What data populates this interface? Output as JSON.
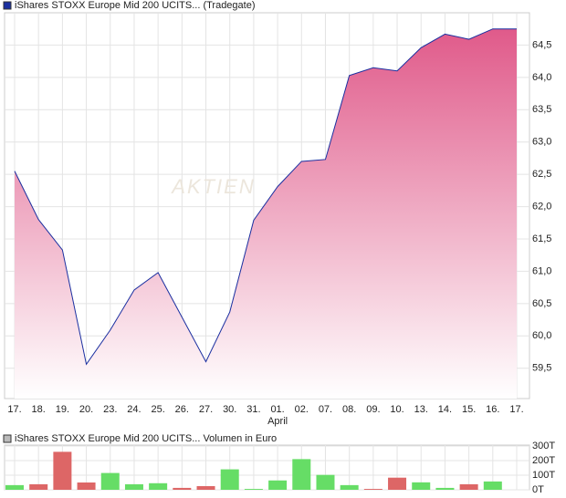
{
  "chart_data": [
    {
      "type": "area",
      "title": "iShares STOXX Europe Mid 200 UCITS... (Tradegate)",
      "watermark": "AKTIEN",
      "categories": [
        "17.",
        "18.",
        "19.",
        "20.",
        "23.",
        "24.",
        "25.",
        "26.",
        "27.",
        "30.",
        "31.",
        "01.",
        "02.",
        "07.",
        "08.",
        "09.",
        "10.",
        "13.",
        "14.",
        "15.",
        "16.",
        "17."
      ],
      "month_label": "April",
      "series": [
        {
          "name": "iShares STOXX Europe Mid 200 UCITS... (Tradegate)",
          "color": "#1a2fa0",
          "values": [
            62.55,
            61.8,
            61.33,
            59.56,
            60.09,
            60.71,
            60.98,
            60.29,
            59.6,
            60.37,
            61.79,
            62.31,
            62.7,
            62.73,
            64.03,
            64.15,
            64.1,
            64.46,
            64.67,
            64.59,
            64.75,
            64.75
          ]
        }
      ],
      "fill_color": "#e05a8a",
      "ylim": [
        59.03,
        65.0
      ],
      "yticks": [
        {
          "value": 59.5,
          "label": "59,5"
        },
        {
          "value": 60.0,
          "label": "60,0"
        },
        {
          "value": 60.5,
          "label": "60,5"
        },
        {
          "value": 61.0,
          "label": "61,0"
        },
        {
          "value": 61.5,
          "label": "61,5"
        },
        {
          "value": 62.0,
          "label": "62,0"
        },
        {
          "value": 62.5,
          "label": "62,5"
        },
        {
          "value": 63.0,
          "label": "63,0"
        },
        {
          "value": 63.5,
          "label": "63,5"
        },
        {
          "value": 64.0,
          "label": "64,0"
        },
        {
          "value": 64.5,
          "label": "64,5"
        }
      ],
      "grid": true
    },
    {
      "type": "bar",
      "title": "iShares STOXX Europe Mid 200 UCITS... Volumen in Euro",
      "values": [
        32,
        38,
        260,
        50,
        115,
        38,
        45,
        13,
        25,
        140,
        6,
        64,
        210,
        102,
        32,
        6,
        83,
        51,
        13,
        38,
        57,
        null
      ],
      "colors": [
        "#66dd66",
        "#dd6666",
        "#dd6666",
        "#dd6666",
        "#66dd66",
        "#66dd66",
        "#66dd66",
        "#dd6666",
        "#dd6666",
        "#66dd66",
        "#66dd66",
        "#66dd66",
        "#66dd66",
        "#66dd66",
        "#66dd66",
        "#dd6666",
        "#dd6666",
        "#66dd66",
        "#66dd66",
        "#dd6666",
        "#66dd66",
        null
      ],
      "ylim": [
        0,
        306
      ],
      "yticks": [
        {
          "value": 0,
          "label": "0T"
        },
        {
          "value": 100,
          "label": "100T"
        },
        {
          "value": 200,
          "label": "200T"
        },
        {
          "value": 300,
          "label": "300T"
        }
      ],
      "grid": true
    }
  ]
}
